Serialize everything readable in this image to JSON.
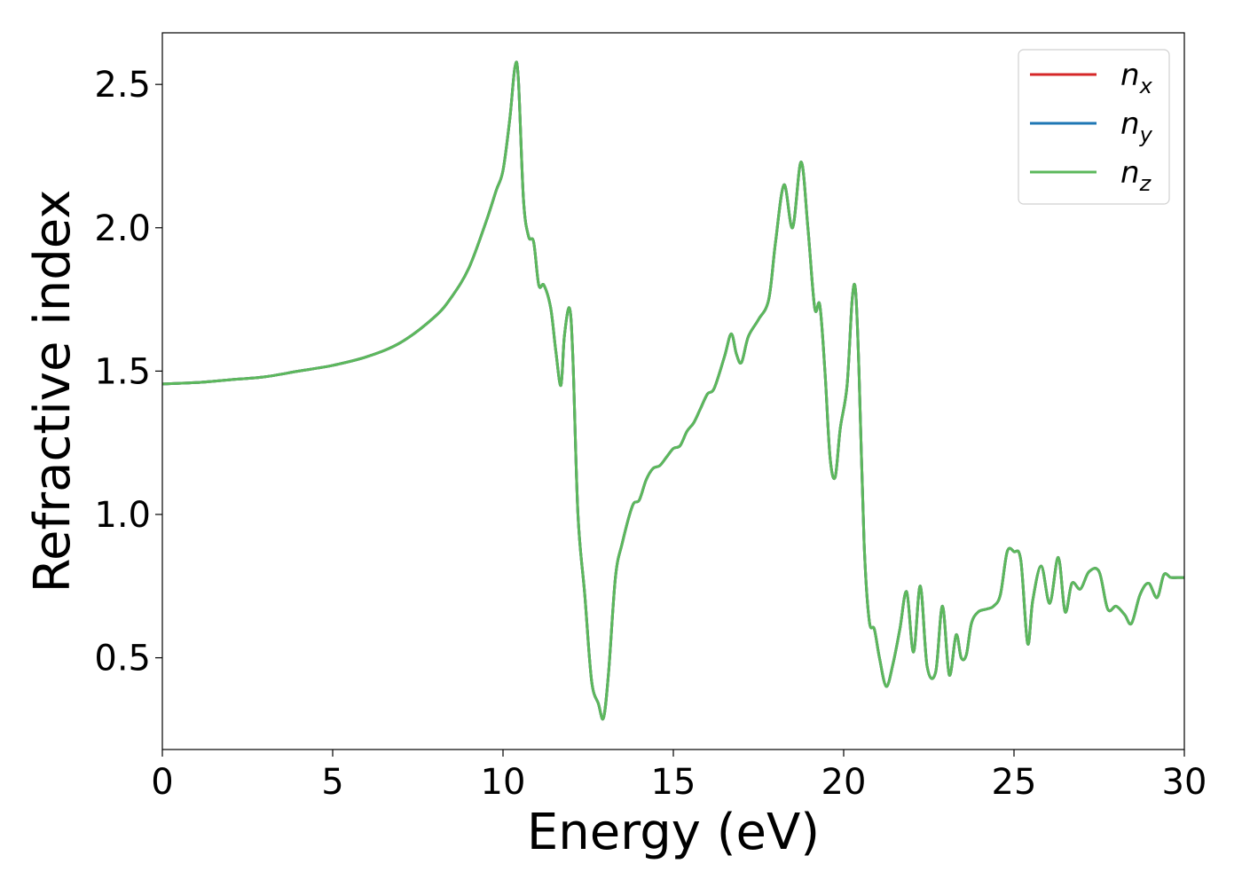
{
  "chart_data": {
    "type": "line",
    "xlabel": "Energy (eV)",
    "ylabel": "Refractive index",
    "xlim": [
      0,
      30
    ],
    "ylim": [
      0.18,
      2.68
    ],
    "xticks": [
      0,
      5,
      10,
      15,
      20,
      25,
      30
    ],
    "xtick_labels": [
      "0",
      "5",
      "10",
      "15",
      "20",
      "25",
      "30"
    ],
    "yticks": [
      0.5,
      1.0,
      1.5,
      2.0,
      2.5
    ],
    "ytick_labels": [
      "0.5",
      "1.0",
      "1.5",
      "2.0",
      "2.5"
    ],
    "grid": false,
    "legend_position": "top-right",
    "series": [
      {
        "name": "n",
        "subscript": "x",
        "color": "#d62728",
        "x": [
          0,
          1,
          2,
          3,
          4,
          5,
          6,
          7,
          8,
          8.5,
          9,
          9.5,
          9.8,
          10.0,
          10.2,
          10.35,
          10.45,
          10.6,
          10.75,
          10.9,
          11.05,
          11.2,
          11.4,
          11.55,
          11.7,
          11.8,
          11.95,
          12.05,
          12.2,
          12.4,
          12.6,
          12.8,
          12.95,
          13.1,
          13.3,
          13.5,
          13.8,
          14.0,
          14.2,
          14.4,
          14.6,
          14.8,
          15.0,
          15.2,
          15.4,
          15.6,
          15.8,
          16.0,
          16.2,
          16.5,
          16.7,
          16.85,
          17.0,
          17.2,
          17.5,
          17.8,
          18.0,
          18.25,
          18.5,
          18.75,
          18.95,
          19.15,
          19.3,
          19.45,
          19.6,
          19.75,
          19.9,
          20.1,
          20.25,
          20.35,
          20.45,
          20.6,
          20.75,
          20.9,
          21.05,
          21.25,
          21.45,
          21.65,
          21.85,
          22.05,
          22.25,
          22.45,
          22.7,
          22.9,
          23.1,
          23.3,
          23.45,
          23.6,
          23.75,
          23.95,
          24.2,
          24.4,
          24.6,
          24.8,
          25.0,
          25.2,
          25.4,
          25.55,
          25.8,
          26.05,
          26.3,
          26.5,
          26.7,
          26.95,
          27.2,
          27.5,
          27.75,
          28.0,
          28.25,
          28.45,
          28.7,
          28.95,
          29.2,
          29.4,
          29.6,
          29.8,
          30.0
        ],
        "values": [
          1.455,
          1.46,
          1.47,
          1.48,
          1.5,
          1.52,
          1.55,
          1.6,
          1.69,
          1.76,
          1.86,
          2.02,
          2.13,
          2.2,
          2.38,
          2.56,
          2.52,
          2.1,
          1.97,
          1.95,
          1.8,
          1.8,
          1.72,
          1.57,
          1.45,
          1.62,
          1.72,
          1.55,
          1.0,
          0.72,
          0.42,
          0.34,
          0.29,
          0.45,
          0.78,
          0.9,
          1.03,
          1.05,
          1.12,
          1.16,
          1.17,
          1.2,
          1.23,
          1.24,
          1.29,
          1.32,
          1.37,
          1.42,
          1.44,
          1.55,
          1.63,
          1.56,
          1.53,
          1.62,
          1.68,
          1.75,
          1.95,
          2.15,
          2.0,
          2.23,
          2.0,
          1.72,
          1.73,
          1.5,
          1.2,
          1.13,
          1.3,
          1.45,
          1.75,
          1.78,
          1.5,
          0.9,
          0.63,
          0.6,
          0.5,
          0.4,
          0.48,
          0.6,
          0.73,
          0.52,
          0.75,
          0.47,
          0.45,
          0.68,
          0.44,
          0.58,
          0.5,
          0.51,
          0.62,
          0.66,
          0.67,
          0.68,
          0.72,
          0.87,
          0.87,
          0.84,
          0.55,
          0.7,
          0.82,
          0.69,
          0.85,
          0.66,
          0.76,
          0.74,
          0.8,
          0.8,
          0.67,
          0.68,
          0.65,
          0.62,
          0.72,
          0.76,
          0.71,
          0.79,
          0.78,
          0.78,
          0.78
        ]
      },
      {
        "name": "n",
        "subscript": "y",
        "color": "#1f77b4",
        "x": [
          0,
          1,
          2,
          3,
          4,
          5,
          6,
          7,
          8,
          8.5,
          9,
          9.5,
          9.8,
          10.0,
          10.2,
          10.35,
          10.45,
          10.6,
          10.75,
          10.9,
          11.05,
          11.2,
          11.4,
          11.55,
          11.7,
          11.8,
          11.95,
          12.05,
          12.2,
          12.4,
          12.6,
          12.8,
          12.95,
          13.1,
          13.3,
          13.5,
          13.8,
          14.0,
          14.2,
          14.4,
          14.6,
          14.8,
          15.0,
          15.2,
          15.4,
          15.6,
          15.8,
          16.0,
          16.2,
          16.5,
          16.7,
          16.85,
          17.0,
          17.2,
          17.5,
          17.8,
          18.0,
          18.25,
          18.5,
          18.75,
          18.95,
          19.15,
          19.3,
          19.45,
          19.6,
          19.75,
          19.9,
          20.1,
          20.25,
          20.35,
          20.45,
          20.6,
          20.75,
          20.9,
          21.05,
          21.25,
          21.45,
          21.65,
          21.85,
          22.05,
          22.25,
          22.45,
          22.7,
          22.9,
          23.1,
          23.3,
          23.45,
          23.6,
          23.75,
          23.95,
          24.2,
          24.4,
          24.6,
          24.8,
          25.0,
          25.2,
          25.4,
          25.55,
          25.8,
          26.05,
          26.3,
          26.5,
          26.7,
          26.95,
          27.2,
          27.5,
          27.75,
          28.0,
          28.25,
          28.45,
          28.7,
          28.95,
          29.2,
          29.4,
          29.6,
          29.8,
          30.0
        ],
        "values": [
          1.455,
          1.46,
          1.47,
          1.48,
          1.5,
          1.52,
          1.55,
          1.6,
          1.69,
          1.76,
          1.86,
          2.02,
          2.13,
          2.2,
          2.38,
          2.56,
          2.52,
          2.1,
          1.97,
          1.95,
          1.8,
          1.8,
          1.72,
          1.57,
          1.45,
          1.62,
          1.72,
          1.55,
          1.0,
          0.72,
          0.42,
          0.34,
          0.29,
          0.45,
          0.78,
          0.9,
          1.03,
          1.05,
          1.12,
          1.16,
          1.17,
          1.2,
          1.23,
          1.24,
          1.29,
          1.32,
          1.37,
          1.42,
          1.44,
          1.55,
          1.63,
          1.56,
          1.53,
          1.62,
          1.68,
          1.75,
          1.95,
          2.15,
          2.0,
          2.23,
          2.0,
          1.72,
          1.73,
          1.5,
          1.2,
          1.13,
          1.3,
          1.45,
          1.75,
          1.78,
          1.5,
          0.9,
          0.63,
          0.6,
          0.5,
          0.4,
          0.48,
          0.6,
          0.73,
          0.52,
          0.75,
          0.47,
          0.45,
          0.68,
          0.44,
          0.58,
          0.5,
          0.51,
          0.62,
          0.66,
          0.67,
          0.68,
          0.72,
          0.87,
          0.87,
          0.84,
          0.55,
          0.7,
          0.82,
          0.69,
          0.85,
          0.66,
          0.76,
          0.74,
          0.8,
          0.8,
          0.67,
          0.68,
          0.65,
          0.62,
          0.72,
          0.76,
          0.71,
          0.79,
          0.78,
          0.78,
          0.78
        ]
      },
      {
        "name": "n",
        "subscript": "z",
        "color": "#5cb85c",
        "x": [
          0,
          1,
          2,
          3,
          4,
          5,
          6,
          7,
          8,
          8.5,
          9,
          9.5,
          9.8,
          10.0,
          10.2,
          10.35,
          10.45,
          10.6,
          10.75,
          10.9,
          11.05,
          11.2,
          11.4,
          11.55,
          11.7,
          11.8,
          11.95,
          12.05,
          12.2,
          12.4,
          12.6,
          12.8,
          12.95,
          13.1,
          13.3,
          13.5,
          13.8,
          14.0,
          14.2,
          14.4,
          14.6,
          14.8,
          15.0,
          15.2,
          15.4,
          15.6,
          15.8,
          16.0,
          16.2,
          16.5,
          16.7,
          16.85,
          17.0,
          17.2,
          17.5,
          17.8,
          18.0,
          18.25,
          18.5,
          18.75,
          18.95,
          19.15,
          19.3,
          19.45,
          19.6,
          19.75,
          19.9,
          20.1,
          20.25,
          20.35,
          20.45,
          20.6,
          20.75,
          20.9,
          21.05,
          21.25,
          21.45,
          21.65,
          21.85,
          22.05,
          22.25,
          22.45,
          22.7,
          22.9,
          23.1,
          23.3,
          23.45,
          23.6,
          23.75,
          23.95,
          24.2,
          24.4,
          24.6,
          24.8,
          25.0,
          25.2,
          25.4,
          25.55,
          25.8,
          26.05,
          26.3,
          26.5,
          26.7,
          26.95,
          27.2,
          27.5,
          27.75,
          28.0,
          28.25,
          28.45,
          28.7,
          28.95,
          29.2,
          29.4,
          29.6,
          29.8,
          30.0
        ],
        "values": [
          1.455,
          1.46,
          1.47,
          1.48,
          1.5,
          1.52,
          1.55,
          1.6,
          1.69,
          1.76,
          1.86,
          2.02,
          2.13,
          2.2,
          2.38,
          2.56,
          2.52,
          2.1,
          1.97,
          1.95,
          1.8,
          1.8,
          1.72,
          1.57,
          1.45,
          1.62,
          1.72,
          1.55,
          1.0,
          0.72,
          0.42,
          0.34,
          0.29,
          0.45,
          0.78,
          0.9,
          1.03,
          1.05,
          1.12,
          1.16,
          1.17,
          1.2,
          1.23,
          1.24,
          1.29,
          1.32,
          1.37,
          1.42,
          1.44,
          1.55,
          1.63,
          1.56,
          1.53,
          1.62,
          1.68,
          1.75,
          1.95,
          2.15,
          2.0,
          2.23,
          2.0,
          1.72,
          1.73,
          1.5,
          1.2,
          1.13,
          1.3,
          1.45,
          1.75,
          1.78,
          1.5,
          0.9,
          0.63,
          0.6,
          0.5,
          0.4,
          0.48,
          0.6,
          0.73,
          0.52,
          0.75,
          0.47,
          0.45,
          0.68,
          0.44,
          0.58,
          0.5,
          0.51,
          0.62,
          0.66,
          0.67,
          0.68,
          0.72,
          0.87,
          0.87,
          0.84,
          0.55,
          0.7,
          0.82,
          0.69,
          0.85,
          0.66,
          0.76,
          0.74,
          0.8,
          0.8,
          0.67,
          0.68,
          0.65,
          0.62,
          0.72,
          0.76,
          0.71,
          0.79,
          0.78,
          0.78,
          0.78
        ]
      }
    ]
  }
}
